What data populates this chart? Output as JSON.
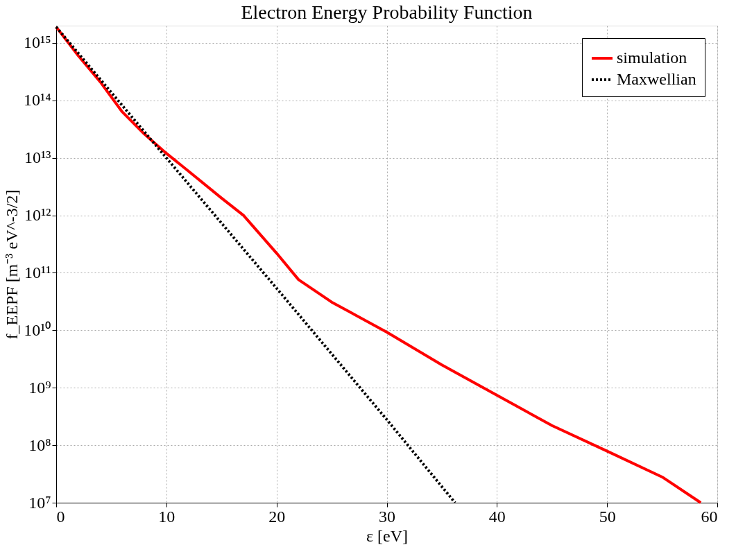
{
  "chart_data": {
    "type": "line",
    "title": "Electron Energy Probability Function",
    "xlabel": "ε [eV]",
    "ylabel": "f_EEPF [m⁻³ eV^-3/2]",
    "log": "y",
    "xlim": [
      0,
      60
    ],
    "xticks": [
      0,
      10,
      20,
      30,
      40,
      50,
      60
    ],
    "ylim": [
      10000000.0,
      2000000000000000.0
    ],
    "yticks": [
      {
        "value": 10000000.0,
        "label": "10⁷"
      },
      {
        "value": 100000000.0,
        "label": "10⁸"
      },
      {
        "value": 1000000000.0,
        "label": "10⁹"
      },
      {
        "value": 10000000000.0,
        "label": "10¹⁰"
      },
      {
        "value": 100000000000.0,
        "label": "10¹¹"
      },
      {
        "value": 1000000000000.0,
        "label": "10¹²"
      },
      {
        "value": 10000000000000.0,
        "label": "10¹³"
      },
      {
        "value": 100000000000000.0,
        "label": "10¹⁴"
      },
      {
        "value": 1000000000000000.0,
        "label": "10¹⁵"
      }
    ],
    "grid": true,
    "legend": "top right",
    "marker": "none",
    "series": [
      {
        "name": "simulation",
        "color": "#ff0000",
        "line_style": "solid",
        "x": [
          0,
          2,
          4,
          6,
          8,
          10,
          12,
          15,
          17,
          20,
          22,
          25,
          30,
          35,
          40,
          45,
          50,
          55,
          58.5
        ],
        "values": [
          1900000000000000.0,
          600000000000000.0,
          210000000000000.0,
          63000000000000.0,
          26000000000000.0,
          12000000000000.0,
          5900000000000.0,
          2000000000000.0,
          1000000000000.0,
          220000000000.0,
          76000000000.0,
          31000000000.0,
          9300000000.0,
          2500000000.0,
          740000000.0,
          220000000.0,
          79000000.0,
          28000000.0,
          10000000.0
        ]
      },
      {
        "name": "Maxwellian",
        "color": "#000000",
        "line_style": "dotted",
        "x": [
          0,
          10,
          20,
          30,
          36.2
        ],
        "values": [
          1900000000000000.0,
          10000000000000.0,
          54000000000.0,
          280000000.0,
          10000000.0
        ]
      }
    ]
  }
}
